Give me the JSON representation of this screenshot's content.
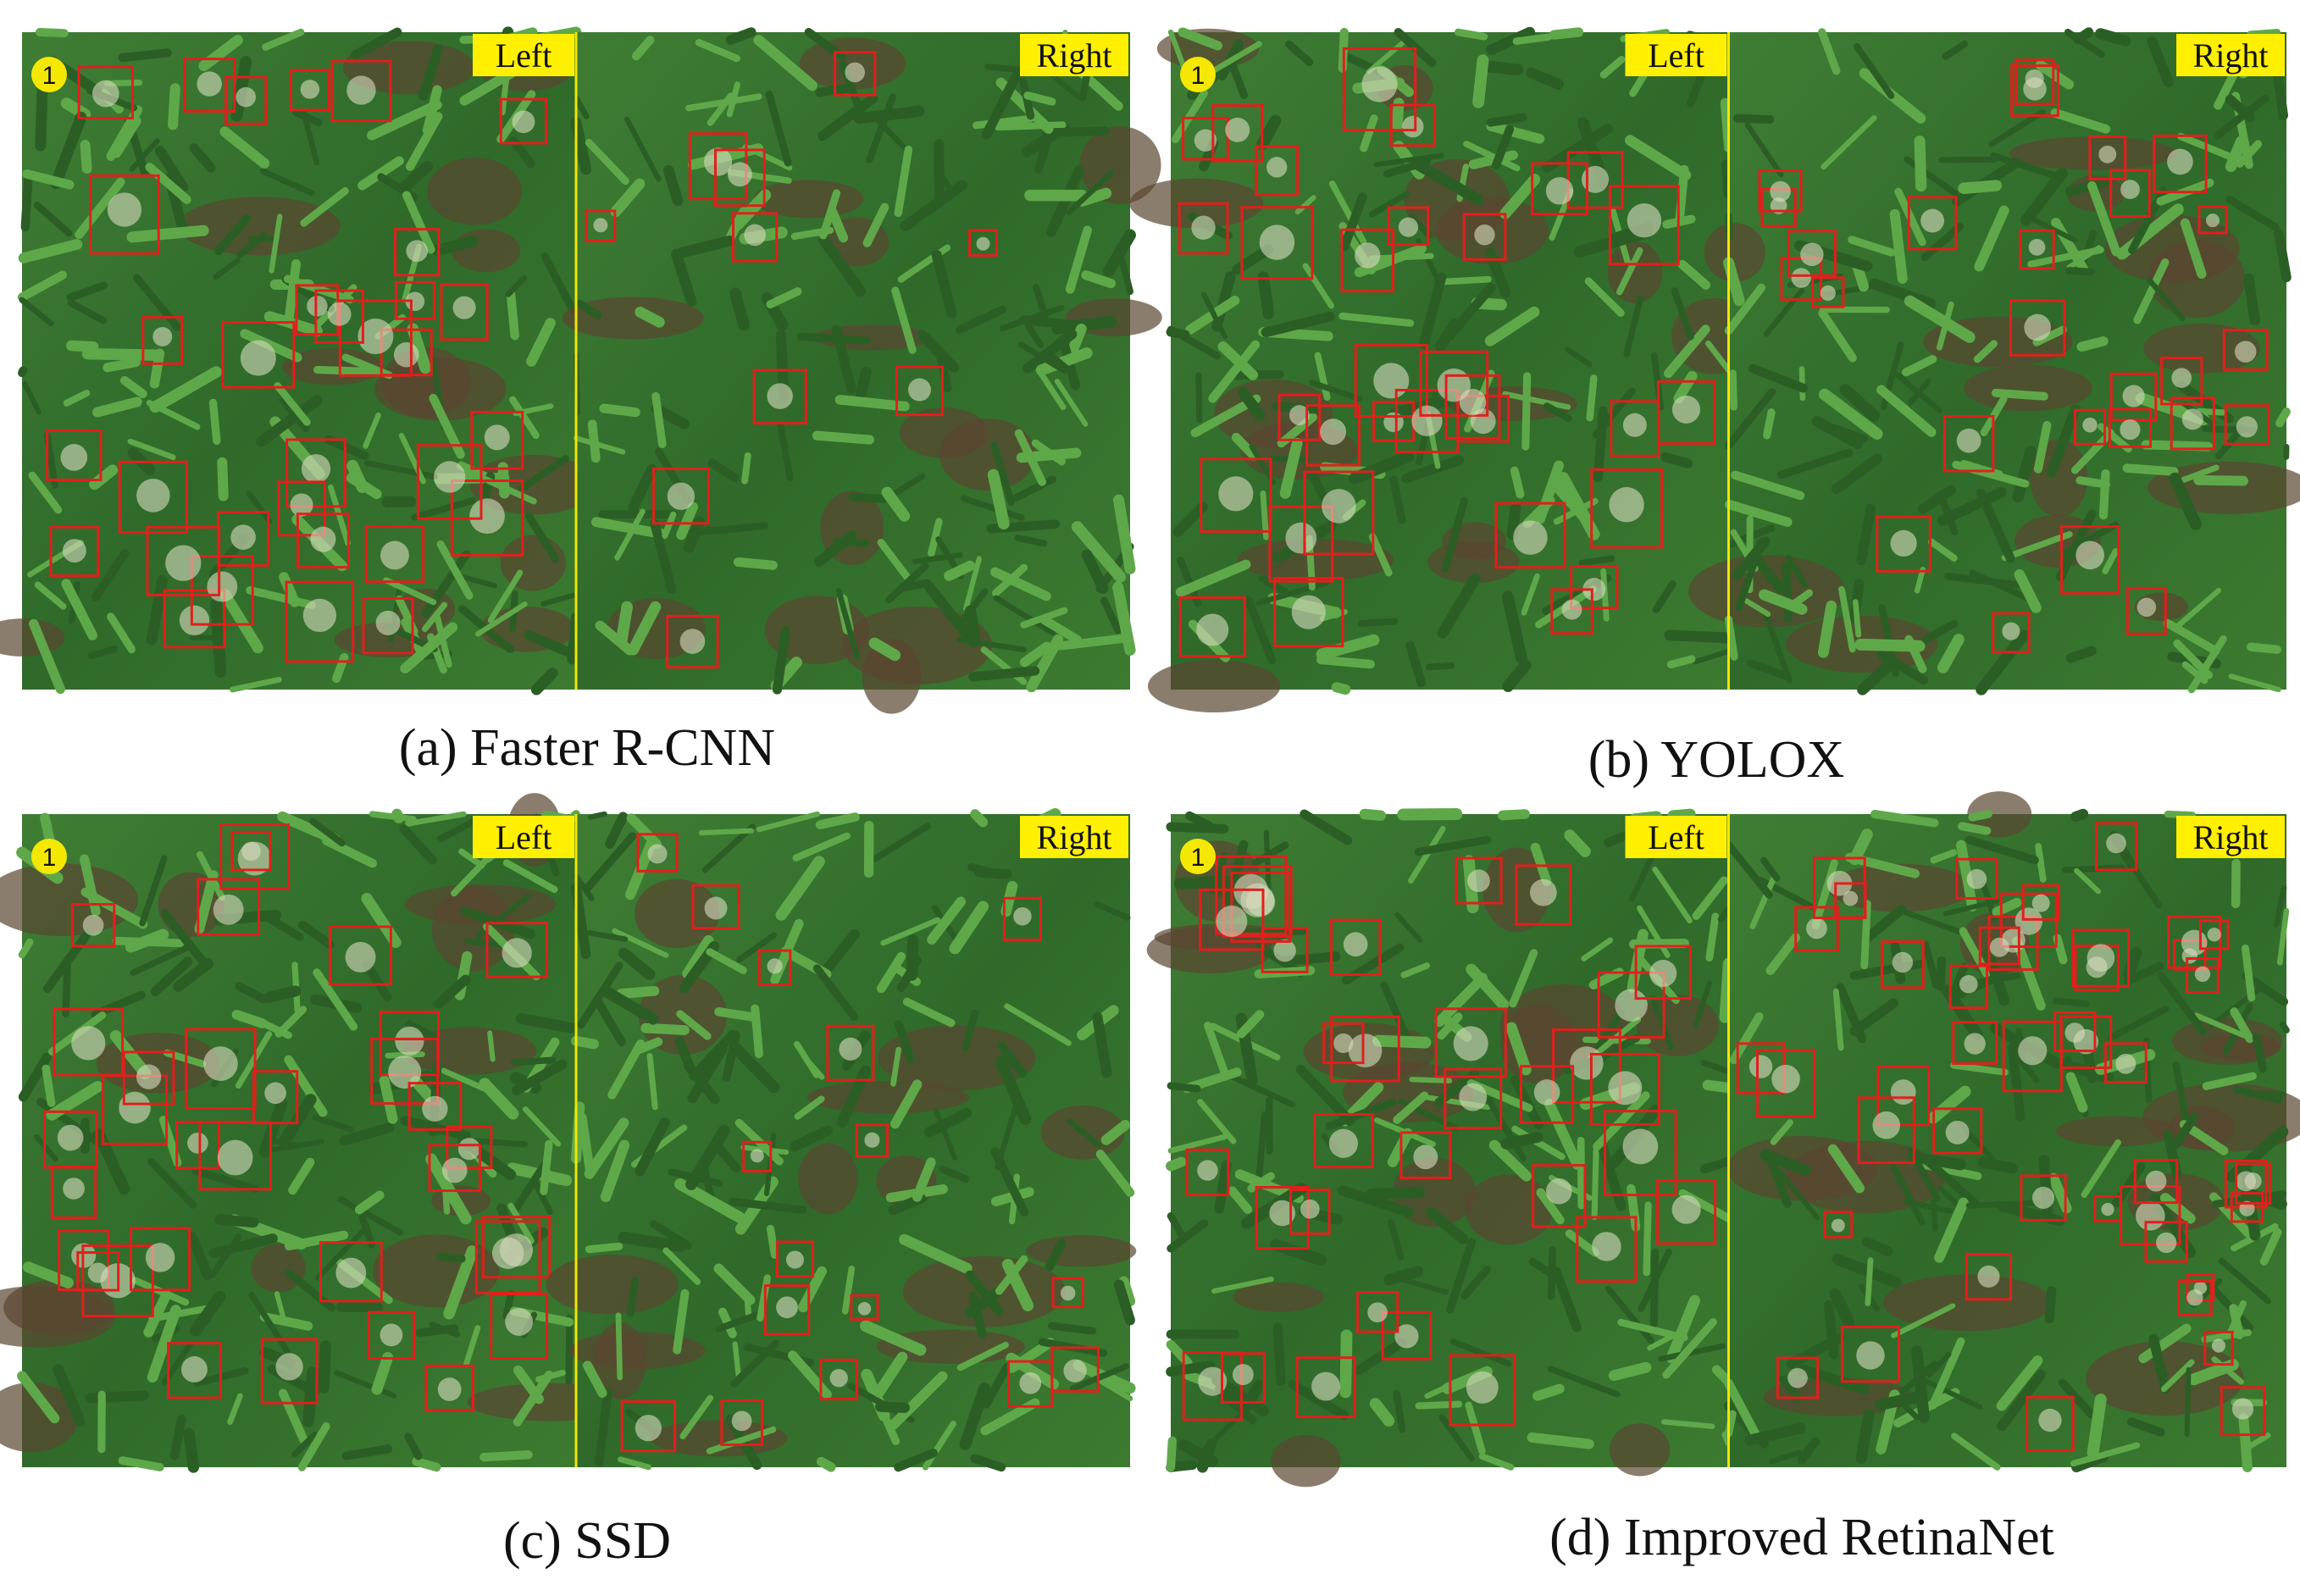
{
  "panels": [
    {
      "caption": "(a) Faster R-CNN",
      "marker": "1",
      "left_label": "Left",
      "right_label": "Right"
    },
    {
      "caption": "(b) YOLOX",
      "marker": "1",
      "left_label": "Left",
      "right_label": "Right"
    },
    {
      "caption": "(c) SSD",
      "marker": "1",
      "left_label": "Left",
      "right_label": "Right"
    },
    {
      "caption": "(d) Improved RetinaNet",
      "marker": "1",
      "left_label": "Left",
      "right_label": "Right"
    }
  ]
}
